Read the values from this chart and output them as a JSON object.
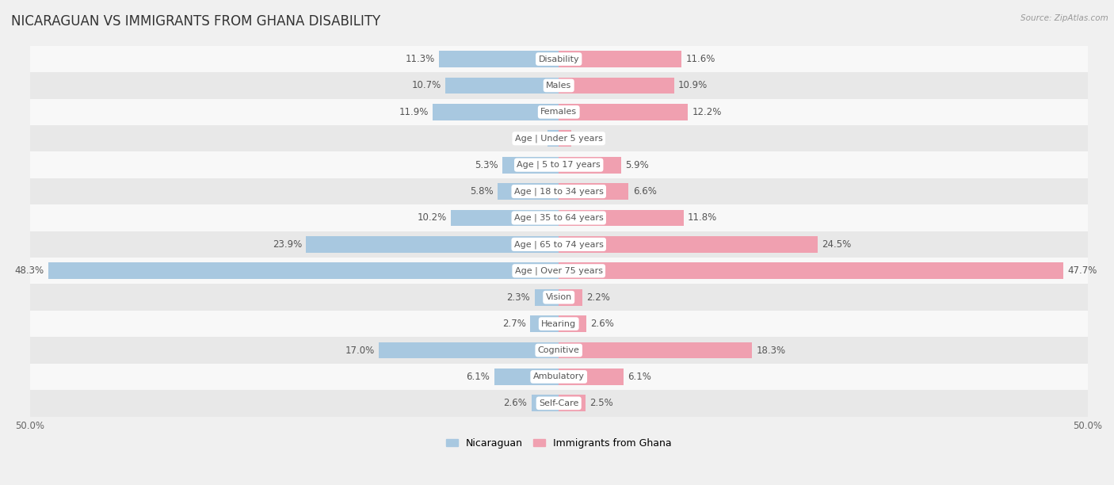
{
  "title": "NICARAGUAN VS IMMIGRANTS FROM GHANA DISABILITY",
  "source": "Source: ZipAtlas.com",
  "categories": [
    "Disability",
    "Males",
    "Females",
    "Age | Under 5 years",
    "Age | 5 to 17 years",
    "Age | 18 to 34 years",
    "Age | 35 to 64 years",
    "Age | 65 to 74 years",
    "Age | Over 75 years",
    "Vision",
    "Hearing",
    "Cognitive",
    "Ambulatory",
    "Self-Care"
  ],
  "nicaraguan": [
    11.3,
    10.7,
    11.9,
    1.1,
    5.3,
    5.8,
    10.2,
    23.9,
    48.3,
    2.3,
    2.7,
    17.0,
    6.1,
    2.6
  ],
  "ghana": [
    11.6,
    10.9,
    12.2,
    1.2,
    5.9,
    6.6,
    11.8,
    24.5,
    47.7,
    2.2,
    2.6,
    18.3,
    6.1,
    2.5
  ],
  "max_val": 50.0,
  "blue_color": "#a8c8e0",
  "pink_color": "#f0a0b0",
  "bar_height": 0.62,
  "bg_color": "#f0f0f0",
  "row_alt_color": "#e8e8e8",
  "row_base_color": "#f8f8f8",
  "title_fontsize": 12,
  "label_fontsize": 8.5,
  "tick_fontsize": 8.5,
  "legend_fontsize": 9,
  "cat_label_fontsize": 8
}
